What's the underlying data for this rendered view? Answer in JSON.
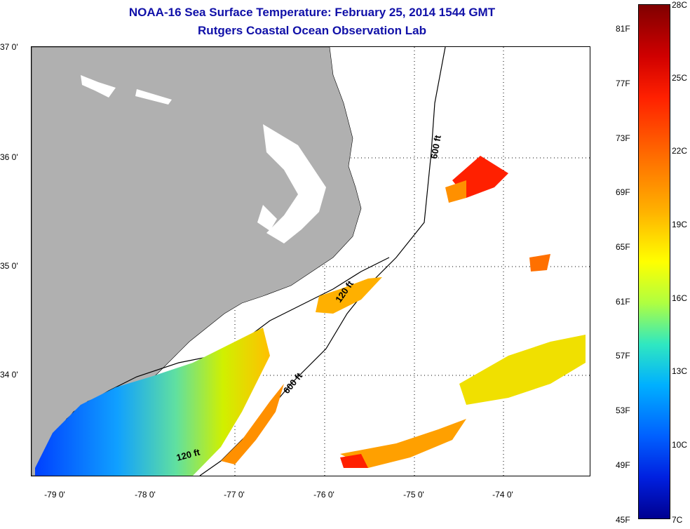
{
  "title_line1": "NOAA-16 Sea Surface Temperature:  February 25, 2014 1544 GMT",
  "title_line2": "Rutgers Coastal Ocean Observation Lab",
  "lat_labels": [
    "37 0'",
    "36 0'",
    "35 0'",
    "34 0'"
  ],
  "lon_labels": [
    "-79 0'",
    "-78 0'",
    "-77 0'",
    "-76 0'",
    "-75 0'",
    "-74 0'"
  ],
  "contour_labels": [
    "600 ft",
    "120 ft",
    "600 ft",
    "120 ft"
  ],
  "colorbar": {
    "fahrenheit": [
      "81F",
      "77F",
      "73F",
      "69F",
      "65F",
      "61F",
      "57F",
      "53F",
      "49F",
      "45F"
    ],
    "celsius": [
      "28C",
      "25C",
      "22C",
      "19C",
      "16C",
      "13C",
      "10C",
      "7C"
    ]
  },
  "colors": {
    "land": "#b0b0b0",
    "title": "#1010a8",
    "warm": "#ff2000",
    "cold": "#0030e0"
  }
}
